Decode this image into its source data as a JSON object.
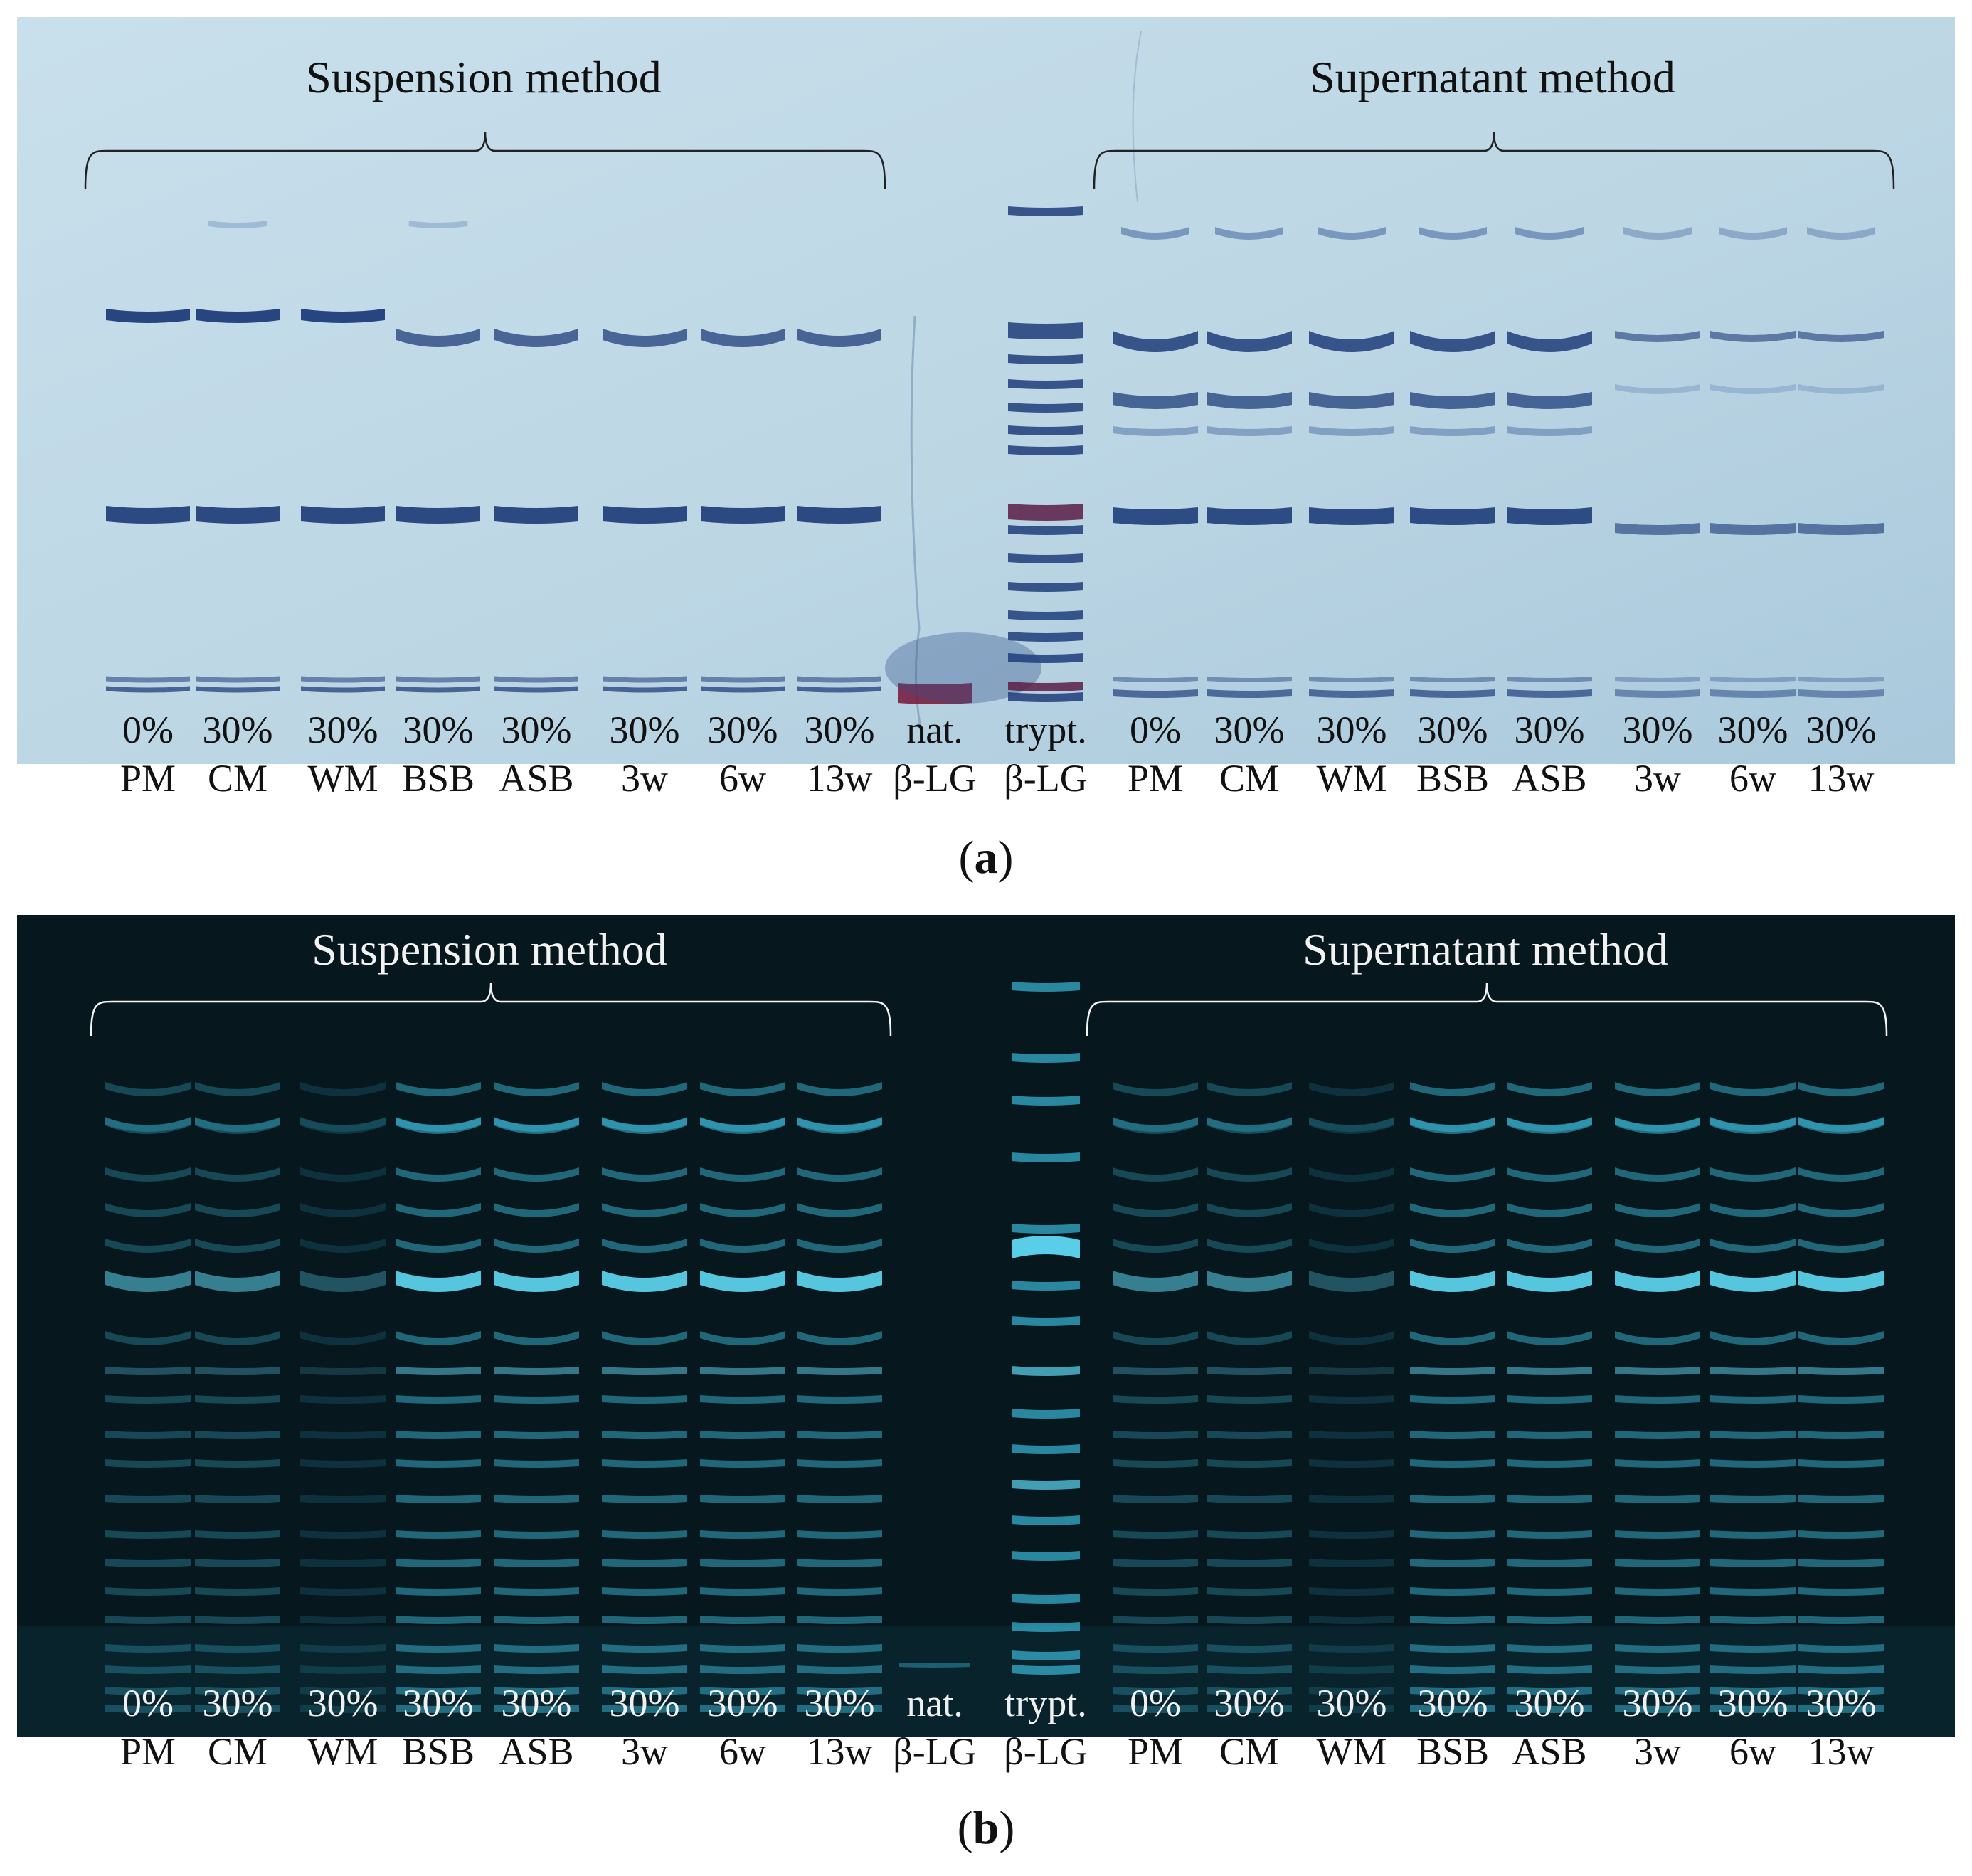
{
  "panels": [
    {
      "id": "a",
      "caption_letter": "a",
      "style": "coomassie",
      "group_titles": {
        "left": "Suspension method",
        "right": "Supernatant method"
      },
      "lanes": [
        {
          "pct": "0%",
          "sample": "PM"
        },
        {
          "pct": "30%",
          "sample": "CM"
        },
        {
          "pct": "30%",
          "sample": "WM"
        },
        {
          "pct": "30%",
          "sample": "BSB"
        },
        {
          "pct": "30%",
          "sample": "ASB"
        },
        {
          "pct": "30%",
          "sample": "3w"
        },
        {
          "pct": "30%",
          "sample": "6w"
        },
        {
          "pct": "30%",
          "sample": "13w"
        },
        {
          "pct": "nat.",
          "sample": "β-LG"
        },
        {
          "pct": "trypt.",
          "sample": "β-LG"
        },
        {
          "pct": "0%",
          "sample": "PM"
        },
        {
          "pct": "30%",
          "sample": "CM"
        },
        {
          "pct": "30%",
          "sample": "WM"
        },
        {
          "pct": "30%",
          "sample": "BSB"
        },
        {
          "pct": "30%",
          "sample": "ASB"
        },
        {
          "pct": "30%",
          "sample": "3w"
        },
        {
          "pct": "30%",
          "sample": "6w"
        },
        {
          "pct": "30%",
          "sample": "13w"
        }
      ]
    },
    {
      "id": "b",
      "caption_letter": "b",
      "style": "fluorescence",
      "group_titles": {
        "left": "Suspension method",
        "right": "Supernatant method"
      },
      "lanes": [
        {
          "pct": "0%",
          "sample": "PM"
        },
        {
          "pct": "30%",
          "sample": "CM"
        },
        {
          "pct": "30%",
          "sample": "WM"
        },
        {
          "pct": "30%",
          "sample": "BSB"
        },
        {
          "pct": "30%",
          "sample": "ASB"
        },
        {
          "pct": "30%",
          "sample": "3w"
        },
        {
          "pct": "30%",
          "sample": "6w"
        },
        {
          "pct": "30%",
          "sample": "13w"
        },
        {
          "pct": "nat.",
          "sample": "β-LG"
        },
        {
          "pct": "trypt.",
          "sample": "β-LG"
        },
        {
          "pct": "0%",
          "sample": "PM"
        },
        {
          "pct": "30%",
          "sample": "CM"
        },
        {
          "pct": "30%",
          "sample": "WM"
        },
        {
          "pct": "30%",
          "sample": "BSB"
        },
        {
          "pct": "30%",
          "sample": "ASB"
        },
        {
          "pct": "30%",
          "sample": "3w"
        },
        {
          "pct": "30%",
          "sample": "6w"
        },
        {
          "pct": "30%",
          "sample": "13w"
        }
      ]
    }
  ],
  "colors": {
    "gel_a_background": "#bcd6e4",
    "gel_a_band": "#1f3d7a",
    "gel_a_band_strong": "#2a1a4a",
    "gel_b_background": "#06171d",
    "gel_b_band": "#3bb8d8",
    "gel_b_band_bright": "#5fd8f4"
  }
}
